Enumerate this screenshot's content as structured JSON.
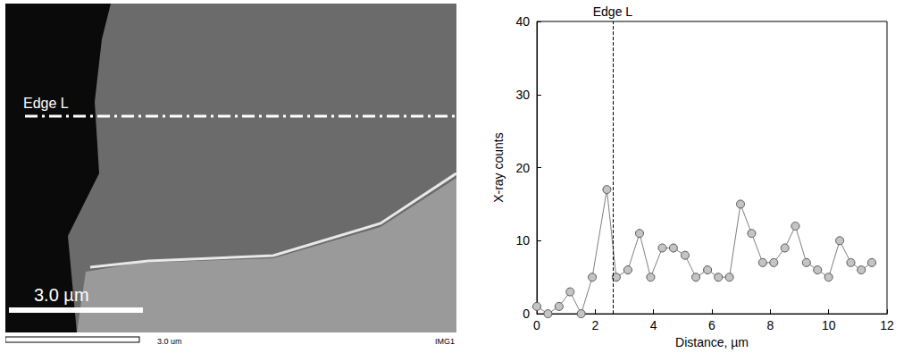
{
  "chart_data": {
    "type": "line",
    "x_label": "Distance, µm",
    "y_label": "X-ray counts",
    "x": [
      0,
      0.38,
      0.76,
      1.14,
      1.52,
      1.9,
      2.4,
      2.72,
      3.12,
      3.52,
      3.9,
      4.3,
      4.68,
      5.08,
      5.45,
      5.85,
      6.22,
      6.6,
      6.98,
      7.36,
      7.74,
      8.12,
      8.5,
      8.86,
      9.24,
      9.62,
      10.0,
      10.38,
      10.76,
      11.12,
      11.48
    ],
    "values": [
      1,
      0,
      1,
      3,
      0,
      5,
      17,
      5,
      6,
      11,
      5,
      9,
      9,
      8,
      5,
      6,
      5,
      5,
      15,
      11,
      7,
      7,
      9,
      12,
      7,
      6,
      5,
      10,
      7,
      6,
      7
    ],
    "color": "#7f7f7f",
    "marker": "circle",
    "xlim": [
      0,
      12
    ],
    "xticks": [
      0,
      2,
      4,
      6,
      8,
      10,
      12
    ],
    "ylim": [
      0,
      40
    ],
    "yticks": [
      0,
      10,
      20,
      30,
      40
    ],
    "grid": false,
    "annotations": [
      {
        "text": "Edge L",
        "x": 2.6,
        "line_style": "dashed"
      }
    ]
  },
  "micrograph": {
    "edge_label": "Edge L",
    "scale_bar": "3.0 µm",
    "footer_scale": "3.0 um",
    "footer_id": "IMG1"
  }
}
